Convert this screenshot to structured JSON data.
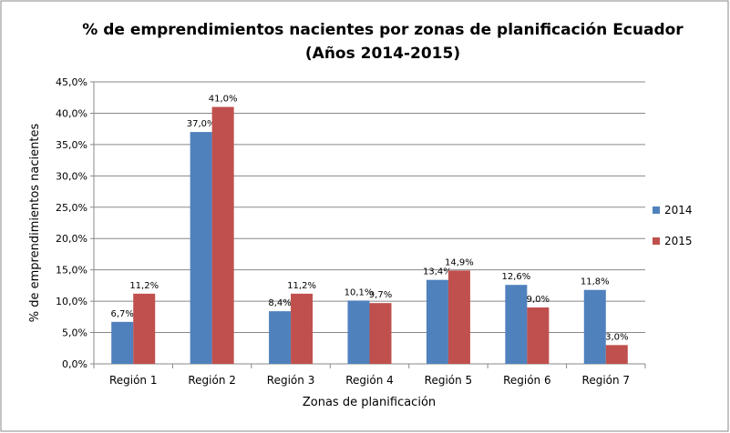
{
  "chart_data": {
    "type": "bar",
    "title_line1": "% de emprendimientos nacientes por zonas de planificación Ecuador",
    "title_line2": "(Años 2014-2015)",
    "xlabel": "Zonas de planificación",
    "ylabel": "% de emprendimientos nacientes",
    "categories": [
      "Región 1",
      "Región 2",
      "Región 3",
      "Región 4",
      "Región 5",
      "Región 6",
      "Región 7"
    ],
    "series": [
      {
        "name": "2014",
        "color": "#4f81bd",
        "values": [
          6.7,
          37.0,
          8.4,
          10.1,
          13.4,
          12.6,
          11.8
        ]
      },
      {
        "name": "2015",
        "color": "#c0504d",
        "values": [
          11.2,
          41.0,
          11.2,
          9.7,
          14.9,
          9.0,
          3.0
        ]
      }
    ],
    "ylim": [
      0,
      45
    ],
    "yticks": [
      "0,0%",
      "5,0%",
      "10,0%",
      "15,0%",
      "20,0%",
      "25,0%",
      "30,0%",
      "35,0%",
      "40,0%",
      "45,0%"
    ],
    "grid": true,
    "legend": "right"
  }
}
